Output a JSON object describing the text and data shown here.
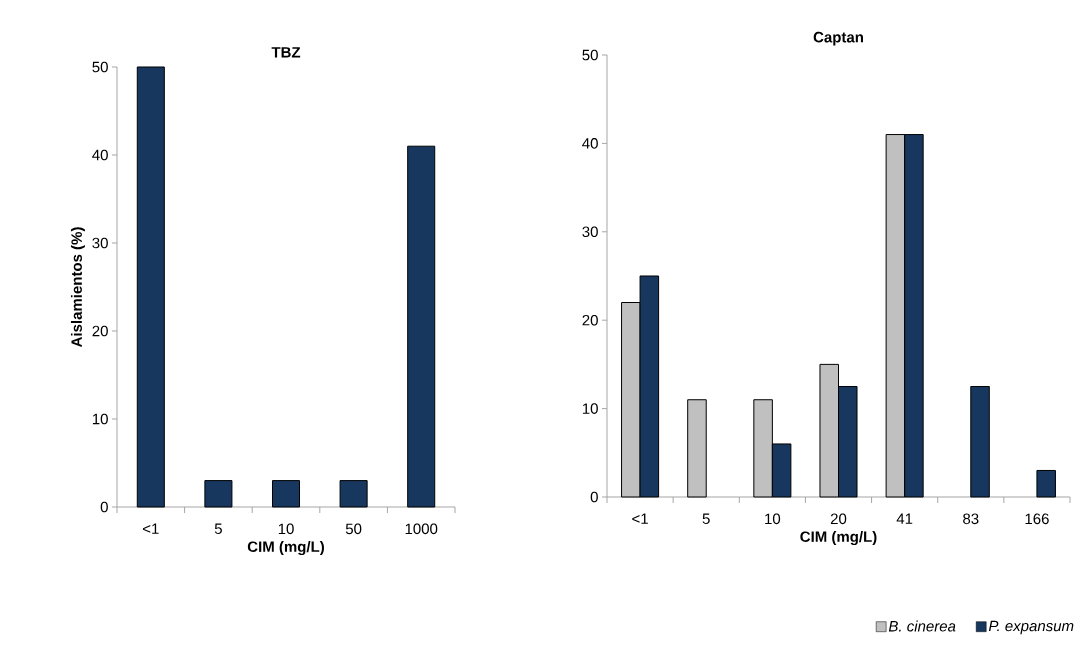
{
  "chart_data": [
    {
      "type": "bar",
      "title": "TBZ",
      "xlabel": "CIM (mg/L)",
      "ylabel": "Aislamientos (%)",
      "categories": [
        "<1",
        "5",
        "10",
        "50",
        "1000"
      ],
      "series": [
        {
          "color": "#17375e",
          "values": [
            50,
            3,
            3,
            3,
            41
          ]
        }
      ],
      "ylim": [
        0,
        50
      ],
      "yticks": [
        0,
        10,
        20,
        30,
        40,
        50
      ],
      "grid": false,
      "legend": false
    },
    {
      "type": "bar",
      "title": "Captan",
      "xlabel": "CIM (mg/L)",
      "categories": [
        "<1",
        "5",
        "10",
        "20",
        "41",
        "83",
        "166"
      ],
      "series": [
        {
          "name": "B. cinerea",
          "color": "#c0c0c0",
          "values": [
            22,
            11,
            11,
            15,
            41,
            null,
            null
          ]
        },
        {
          "name": "P. expansum",
          "color": "#17375e",
          "values": [
            25,
            null,
            6,
            12.5,
            41,
            12.5,
            3
          ]
        }
      ],
      "ylim": [
        0,
        50
      ],
      "yticks": [
        0,
        10,
        20,
        30,
        40,
        50
      ],
      "grid": false,
      "legend": "bottom"
    }
  ]
}
